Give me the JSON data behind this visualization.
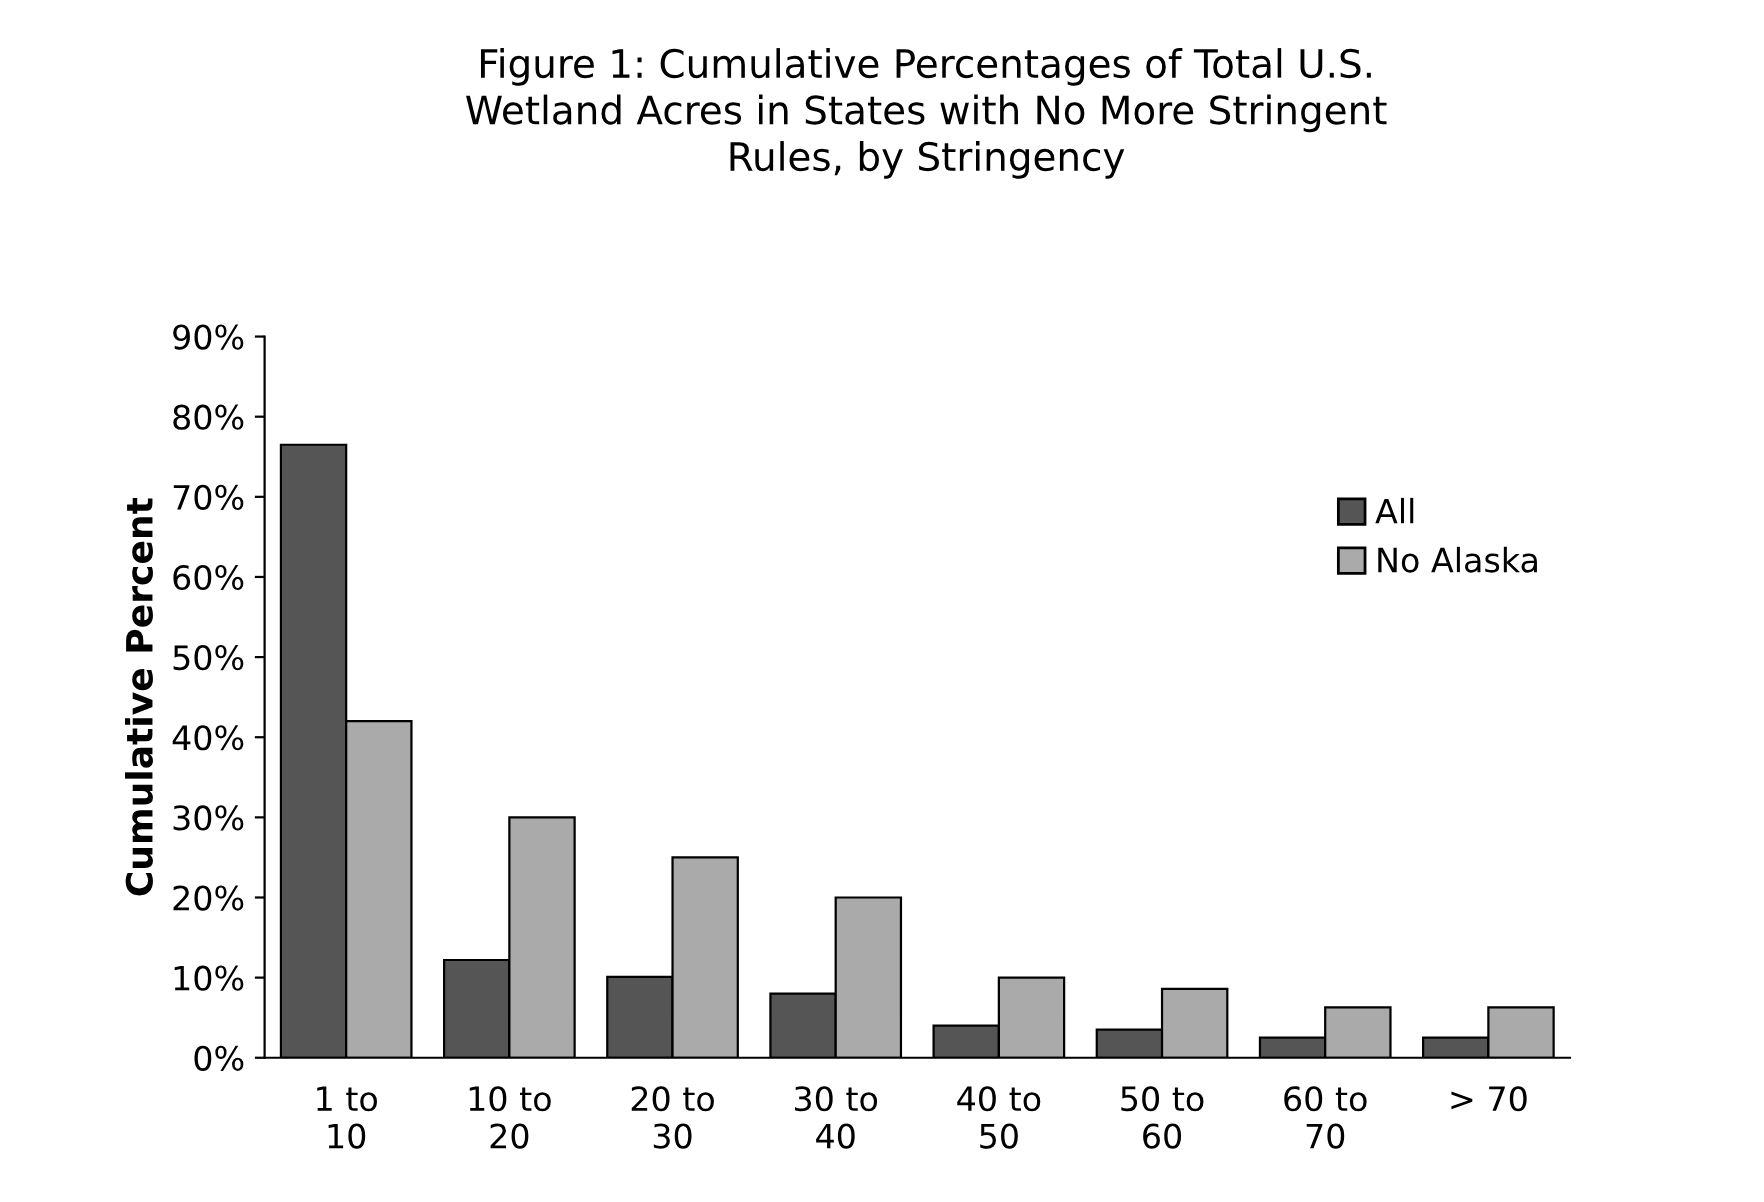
{
  "chart_data": {
    "type": "bar",
    "title": "Figure 1: Cumulative Percentages of Total U.S.\nWetland Acres in States with No More Stringent\nRules, by Stringency",
    "ylabel": "Cumulative Percent",
    "categories": [
      "1 to\n10",
      "10 to\n20",
      "20 to\n30",
      "30 to\n40",
      "40 to\n50",
      "50 to\n60",
      "60 to\n70",
      "> 70"
    ],
    "series": [
      {
        "name": "All",
        "color": "#555555",
        "values": [
          76.5,
          12.2,
          10.1,
          8.0,
          4.0,
          3.5,
          2.5,
          2.5
        ]
      },
      {
        "name": "No Alaska",
        "color": "#aaaaaa",
        "values": [
          42,
          30,
          25,
          20,
          10,
          8.6,
          6.3,
          6.3
        ]
      }
    ],
    "ylim": [
      0,
      90
    ],
    "yticks": [
      {
        "value": 0,
        "label": "0%"
      },
      {
        "value": 10,
        "label": "10%"
      },
      {
        "value": 20,
        "label": "20%"
      },
      {
        "value": 30,
        "label": "30%"
      },
      {
        "value": 40,
        "label": "40%"
      },
      {
        "value": 50,
        "label": "50%"
      },
      {
        "value": 60,
        "label": "60%"
      },
      {
        "value": 70,
        "label": "70%"
      },
      {
        "value": 80,
        "label": "80%"
      },
      {
        "value": 90,
        "label": "90%"
      }
    ],
    "grid": false,
    "legend": "right"
  }
}
